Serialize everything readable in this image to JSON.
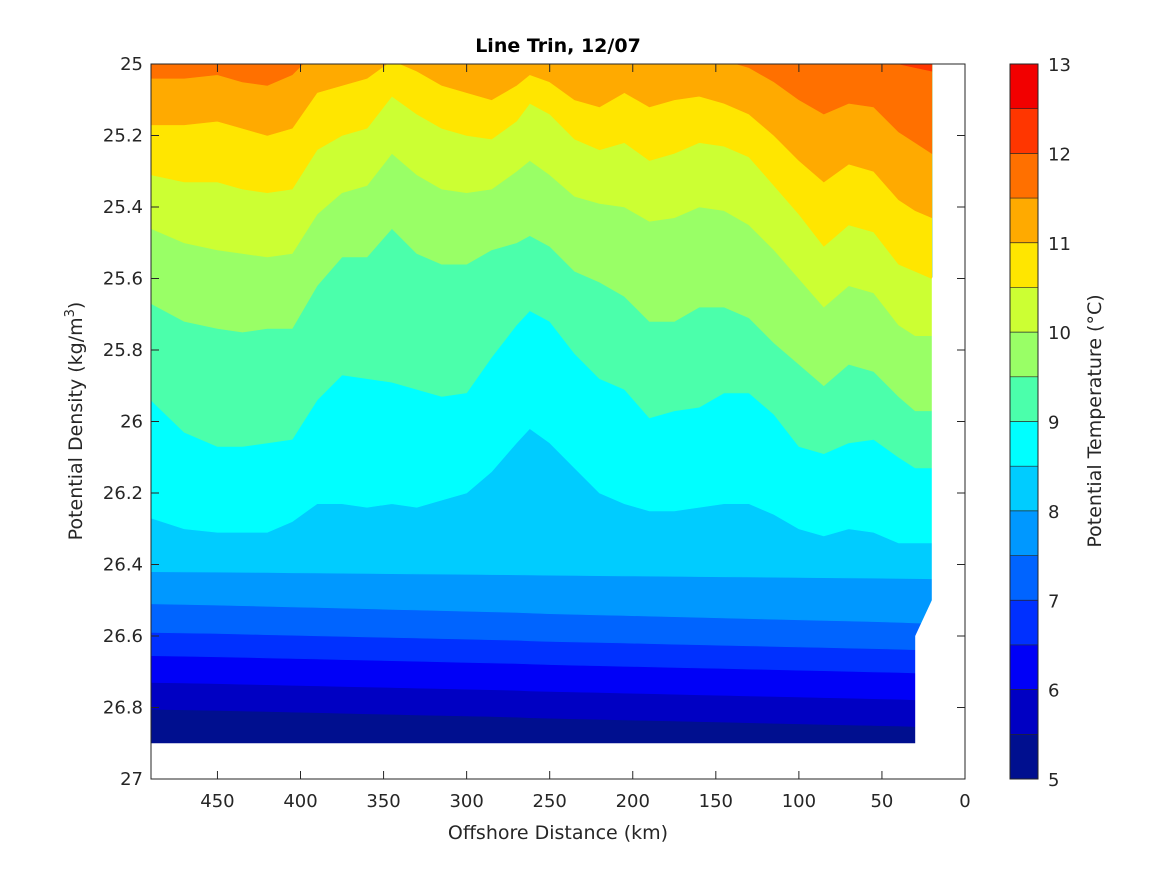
{
  "chart_data": {
    "type": "contourf",
    "title": "Line Trin, 12/07",
    "xlabel": "Offshore Distance (km)",
    "ylabel_main": "Potential Density (kg/m",
    "ylabel_sup": "3",
    "ylabel_close": ")",
    "colorbar_label": "Potential Temperature (°C)",
    "xlim": [
      490,
      0
    ],
    "ylim": [
      25,
      27
    ],
    "x_ticks": [
      450,
      400,
      350,
      300,
      250,
      200,
      150,
      100,
      50,
      0
    ],
    "x_tick_labels": [
      "450",
      "400",
      "350",
      "300",
      "250",
      "200",
      "150",
      "100",
      "50",
      "0"
    ],
    "y_ticks": [
      25,
      25.2,
      25.4,
      25.6,
      25.8,
      26,
      26.2,
      26.4,
      26.6,
      26.8,
      27
    ],
    "y_tick_labels": [
      "25",
      "25.2",
      "25.4",
      "25.6",
      "25.8",
      "26",
      "26.2",
      "26.4",
      "26.6",
      "26.8",
      "27"
    ],
    "clim": [
      5,
      13
    ],
    "colorbar_ticks": [
      5,
      6,
      7,
      8,
      9,
      10,
      11,
      12,
      13
    ],
    "colorbar_tick_labels": [
      "5",
      "6",
      "7",
      "8",
      "9",
      "10",
      "11",
      "12",
      "13"
    ],
    "levels": [
      5,
      5.5,
      6,
      6.5,
      7,
      7.5,
      8,
      8.5,
      9,
      9.5,
      10,
      10.5,
      11,
      11.5,
      12,
      12.5,
      13
    ],
    "level_colors": [
      "#000f8f",
      "#0000c3",
      "#0000f7",
      "#0030ff",
      "#0064ff",
      "#0098ff",
      "#00ccff",
      "#00ffff",
      "#4bffab",
      "#99ff66",
      "#ccff33",
      "#ffe600",
      "#ffaa00",
      "#ff7000",
      "#ff3600",
      "#f20000",
      "#b00000"
    ],
    "x_profile": [
      490,
      470,
      450,
      435,
      420,
      405,
      390,
      375,
      360,
      345,
      330,
      315,
      300,
      285,
      270,
      262,
      250,
      235,
      220,
      205,
      190,
      175,
      160,
      145,
      130,
      115,
      100,
      85,
      70,
      55,
      40,
      30,
      20
    ],
    "isopycnal_depths": {
      "t8": [
        26.27,
        26.3,
        26.31,
        26.31,
        26.31,
        26.28,
        26.23,
        26.23,
        26.24,
        26.23,
        26.24,
        26.22,
        26.2,
        26.14,
        26.06,
        26.02,
        26.06,
        26.13,
        26.2,
        26.23,
        26.25,
        26.25,
        26.24,
        26.23,
        26.23,
        26.26,
        26.3,
        26.32,
        26.3,
        26.31,
        26.34,
        26.34,
        26.34
      ],
      "t9": [
        25.94,
        26.03,
        26.07,
        26.07,
        26.06,
        26.05,
        25.94,
        25.87,
        25.88,
        25.89,
        25.91,
        25.93,
        25.92,
        25.82,
        25.73,
        25.69,
        25.72,
        25.81,
        25.88,
        25.91,
        25.99,
        25.97,
        25.96,
        25.92,
        25.92,
        25.98,
        26.07,
        26.09,
        26.06,
        26.05,
        26.1,
        26.13,
        26.13
      ],
      "t10": [
        25.67,
        25.72,
        25.74,
        25.75,
        25.74,
        25.74,
        25.62,
        25.54,
        25.54,
        25.46,
        25.53,
        25.56,
        25.56,
        25.52,
        25.5,
        25.48,
        25.51,
        25.58,
        25.61,
        25.65,
        25.72,
        25.72,
        25.68,
        25.68,
        25.71,
        25.78,
        25.84,
        25.9,
        25.84,
        25.86,
        25.93,
        25.97,
        25.97
      ],
      "t105": [
        25.46,
        25.5,
        25.52,
        25.53,
        25.54,
        25.53,
        25.42,
        25.36,
        25.34,
        25.25,
        25.31,
        25.35,
        25.36,
        25.35,
        25.3,
        25.27,
        25.31,
        25.37,
        25.39,
        25.4,
        25.44,
        25.43,
        25.4,
        25.41,
        25.45,
        25.52,
        25.6,
        25.68,
        25.62,
        25.64,
        25.73,
        25.76,
        25.76
      ],
      "t11": [
        25.31,
        25.33,
        25.33,
        25.35,
        25.36,
        25.35,
        25.24,
        25.2,
        25.18,
        25.09,
        25.14,
        25.18,
        25.2,
        25.21,
        25.16,
        25.11,
        25.14,
        25.21,
        25.24,
        25.22,
        25.27,
        25.25,
        25.22,
        25.23,
        25.26,
        25.34,
        25.42,
        25.51,
        25.45,
        25.47,
        25.56,
        25.58,
        25.6
      ],
      "t115": [
        25.17,
        25.17,
        25.16,
        25.18,
        25.2,
        25.18,
        25.08,
        25.06,
        25.04,
        24.99,
        25.02,
        25.06,
        25.08,
        25.1,
        25.06,
        25.03,
        25.05,
        25.1,
        25.12,
        25.08,
        25.12,
        25.1,
        25.09,
        25.11,
        25.14,
        25.2,
        25.27,
        25.33,
        25.28,
        25.3,
        25.38,
        25.41,
        25.43
      ],
      "t12": [
        25.04,
        25.04,
        25.03,
        25.05,
        25.06,
        25.03,
        24.96,
        24.95,
        24.95,
        24.92,
        24.93,
        24.96,
        24.97,
        24.99,
        24.97,
        24.95,
        24.96,
        24.99,
        25.0,
        24.97,
        24.99,
        24.98,
        24.98,
        24.99,
        25.01,
        25.05,
        25.1,
        25.14,
        25.11,
        25.12,
        25.19,
        25.22,
        25.25
      ],
      "t125": [
        24.96,
        24.97,
        24.98,
        24.99,
        24.99,
        24.97,
        24.93,
        24.93,
        24.93,
        24.91,
        24.91,
        24.93,
        24.93,
        24.94,
        24.93,
        24.92,
        24.93,
        24.95,
        24.96,
        24.94,
        24.95,
        24.95,
        24.95,
        24.95,
        24.96,
        24.98,
        24.99,
        24.99,
        24.98,
        24.98,
        25.0,
        25.01,
        25.02
      ]
    },
    "isopycnal_linear": {
      "t5_5": [
        26.805,
        26.855
      ],
      "t6": [
        26.73,
        26.78
      ],
      "t6_5": [
        26.655,
        26.705
      ],
      "t7": [
        26.59,
        26.64
      ],
      "t7_5": [
        26.51,
        26.565
      ],
      "t8_bottom": [
        26.42,
        26.44
      ]
    },
    "data_extent": {
      "x_max": 490,
      "bottom_density": 26.9
    }
  }
}
